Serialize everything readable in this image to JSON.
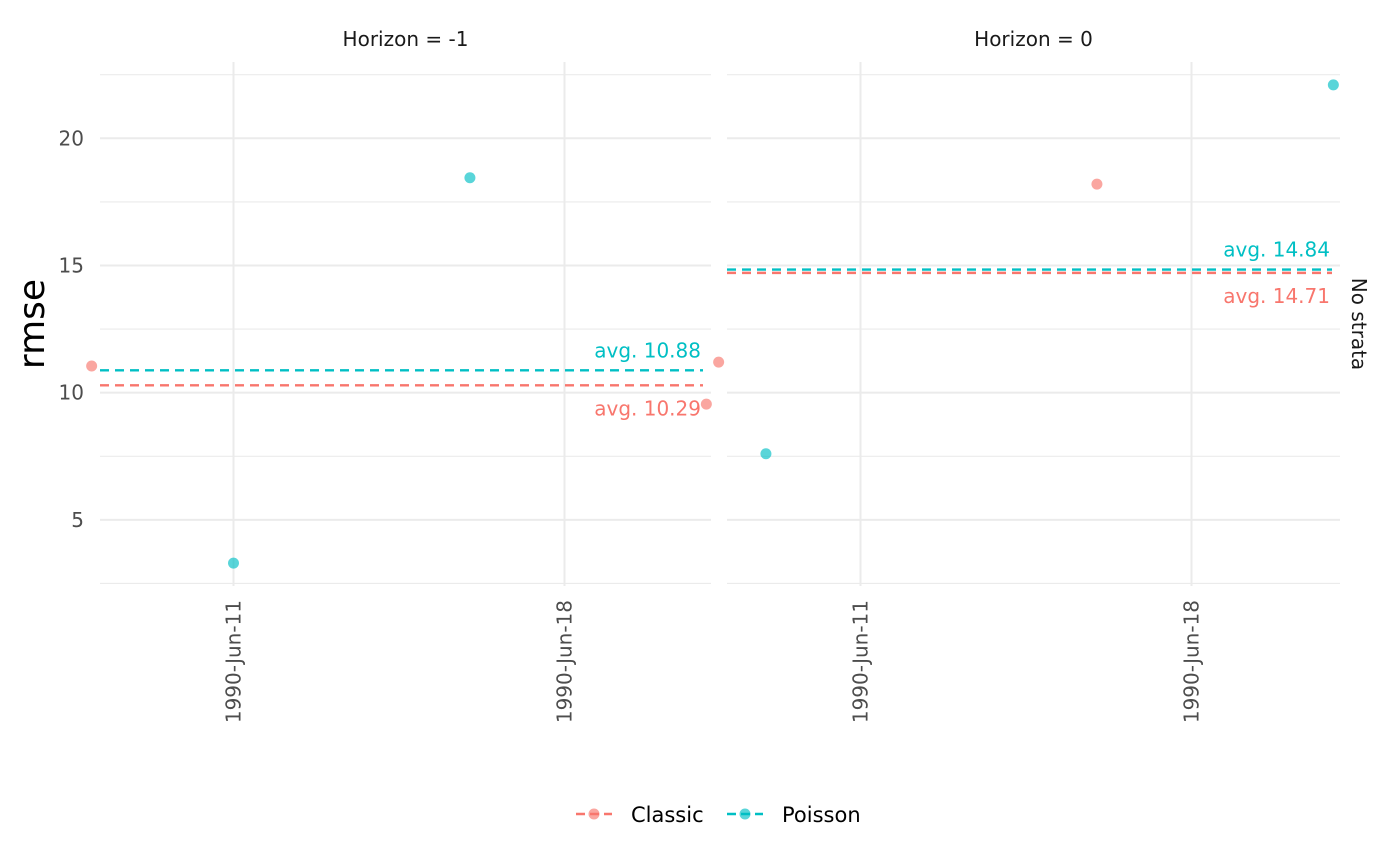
{
  "chart_data": {
    "type": "scatter",
    "ylabel": "rmse",
    "xlabel": "",
    "ylim": [
      2.4,
      23
    ],
    "x_ticks": [
      "1990-Jun-11",
      "1990-Jun-18"
    ],
    "y_ticks": [
      5,
      10,
      15,
      20
    ],
    "grid": true,
    "legend_position": "bottom",
    "strata_label": "No strata",
    "series": [
      {
        "name": "Classic",
        "color": "#f8766d"
      },
      {
        "name": "Poisson",
        "color": "#00bfc4"
      }
    ],
    "panels": [
      {
        "title": "Horizon = -1",
        "points": [
          {
            "series": "Classic",
            "x": "1990-Jun-08",
            "y": 11.05
          },
          {
            "series": "Classic",
            "x": "1990-Jun-21",
            "y": 9.55
          },
          {
            "series": "Poisson",
            "x": "1990-Jun-11",
            "y": 3.3
          },
          {
            "series": "Poisson",
            "x": "1990-Jun-16",
            "y": 18.45
          }
        ],
        "averages": [
          {
            "series": "Classic",
            "value": 10.29,
            "label": "avg. 10.29"
          },
          {
            "series": "Poisson",
            "value": 10.88,
            "label": "avg. 10.88"
          }
        ]
      },
      {
        "title": "Horizon = 0",
        "points": [
          {
            "series": "Classic",
            "x": "1990-Jun-08",
            "y": 11.2
          },
          {
            "series": "Classic",
            "x": "1990-Jun-16",
            "y": 18.2
          },
          {
            "series": "Poisson",
            "x": "1990-Jun-09",
            "y": 7.6
          },
          {
            "series": "Poisson",
            "x": "1990-Jun-21",
            "y": 22.1
          }
        ],
        "averages": [
          {
            "series": "Classic",
            "value": 14.71,
            "label": "avg. 14.71"
          },
          {
            "series": "Poisson",
            "value": 14.84,
            "label": "avg. 14.84"
          }
        ]
      }
    ]
  }
}
